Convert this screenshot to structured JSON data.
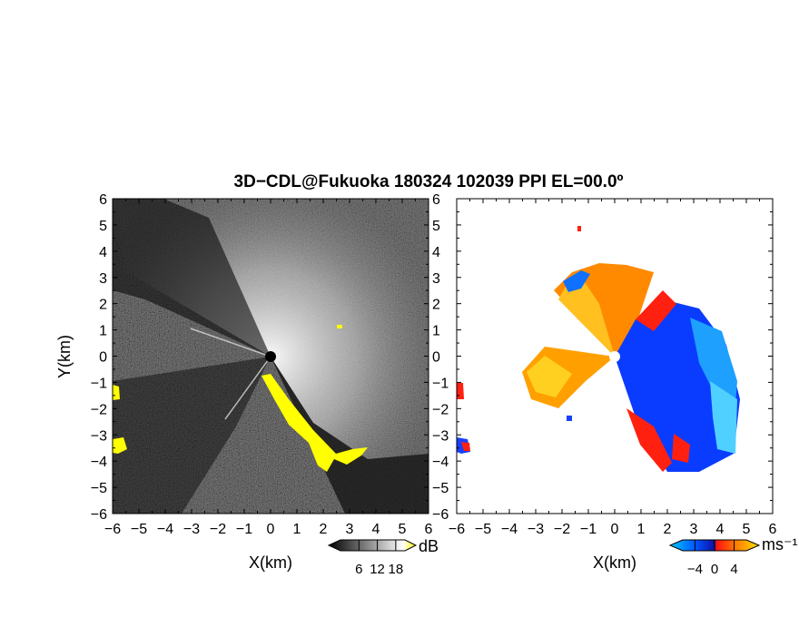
{
  "chart_data": {
    "type": "heatmap",
    "title": "3D−CDL@Fukuoka 180324 102039 PPI EL=00.0º",
    "panels": [
      {
        "name": "reflectivity",
        "xlabel": "X(km)",
        "ylabel": "Y(km)",
        "xlim": [
          -6,
          6
        ],
        "ylim": [
          -6,
          6
        ],
        "xticks": [
          -6,
          -5,
          -4,
          -3,
          -2,
          -1,
          0,
          1,
          2,
          3,
          4,
          5,
          6
        ],
        "yticks": [
          -6,
          -5,
          -4,
          -3,
          -2,
          -1,
          0,
          1,
          2,
          3,
          4,
          5,
          6
        ],
        "tick_labels": [
          "−6",
          "−5",
          "−4",
          "−3",
          "−2",
          "−1",
          "0",
          "1",
          "2",
          "3",
          "4",
          "5",
          "6"
        ],
        "colorbar": {
          "unit": "dB",
          "ticks": [
            6,
            12,
            18
          ],
          "tick_labels": [
            "6",
            "12",
            "18"
          ],
          "colors": [
            "#000000",
            "#ffffff",
            "#ffff00"
          ]
        }
      },
      {
        "name": "doppler-velocity",
        "xlabel": "X(km)",
        "ylabel": "",
        "xlim": [
          -6,
          6
        ],
        "ylim": [
          -6,
          6
        ],
        "xticks": [
          -6,
          -5,
          -4,
          -3,
          -2,
          -1,
          0,
          1,
          2,
          3,
          4,
          5,
          6
        ],
        "yticks": [
          -6,
          -5,
          -4,
          -3,
          -2,
          -1,
          0,
          1,
          2,
          3,
          4,
          5,
          6
        ],
        "tick_labels": [
          "−6",
          "−5",
          "−4",
          "−3",
          "−2",
          "−1",
          "0",
          "1",
          "2",
          "3",
          "4",
          "5",
          "6"
        ],
        "colorbar": {
          "unit": "ms⁻¹",
          "ticks": [
            -4,
            0,
            4
          ],
          "tick_labels": [
            "−4",
            "0",
            "4"
          ],
          "colors": [
            "#00c8ff",
            "#0050ff",
            "#1010a0",
            "#ff1010",
            "#ff8000",
            "#ffe000"
          ]
        }
      }
    ]
  }
}
